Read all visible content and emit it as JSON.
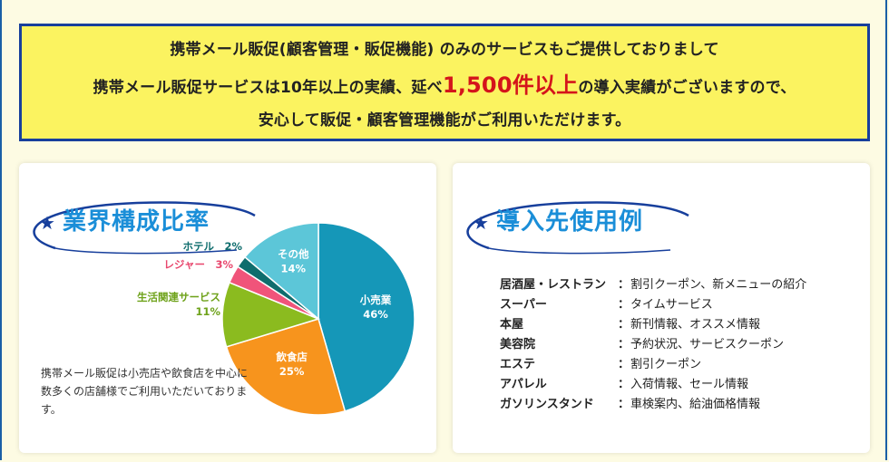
{
  "banner": {
    "line1": "携帯メール販促(顧客管理・販促機能) のみのサービスもご提供しておりまして",
    "line2_before": "携帯メール販促サービスは10年以上の実績、延べ",
    "line2_highlight": "1,500件以上",
    "line2_after": "の導入実績がございますので、",
    "line3": "安心して販促・顧客管理機能がご利用いただけます。"
  },
  "industry": {
    "title": "業界構成比率",
    "icon": "star-icon",
    "note": "携帯メール販促は小売店や飲食店を中心に数多くの店舗様でご利用いただいております。",
    "chart_data": {
      "type": "pie",
      "slices": [
        {
          "label": "小売業",
          "value": 46,
          "value_text": "46%",
          "color": "#1597b8"
        },
        {
          "label": "飲食店",
          "value": 25,
          "value_text": "25%",
          "color": "#f7941d"
        },
        {
          "label": "生活関連サービス",
          "value": 11,
          "value_text": "11%",
          "color": "#8bbb1f"
        },
        {
          "label": "レジャー",
          "value": 3,
          "value_text": "3%",
          "color": "#f0547a"
        },
        {
          "label": "ホテル",
          "value": 2,
          "value_text": "2%",
          "color": "#0f6d6d"
        },
        {
          "label": "その他",
          "value": 14,
          "value_text": "14%",
          "color": "#5cc6d8"
        }
      ]
    }
  },
  "usage": {
    "title": "導入先使用例",
    "icon": "star-icon",
    "rows": [
      {
        "name": "居酒屋・レストラン",
        "detail": "割引クーポン、新メニューの紹介"
      },
      {
        "name": "スーパー",
        "detail": "タイムサービス"
      },
      {
        "name": "本屋",
        "detail": "新刊情報、オススメ情報"
      },
      {
        "name": "美容院",
        "detail": "予約状況、サービスクーポン"
      },
      {
        "name": "エステ",
        "detail": "割引クーポン"
      },
      {
        "name": "アパレル",
        "detail": "入荷情報、セール情報"
      },
      {
        "name": "ガソリンスタンド",
        "detail": "車検案内、給油価格情報"
      }
    ]
  }
}
